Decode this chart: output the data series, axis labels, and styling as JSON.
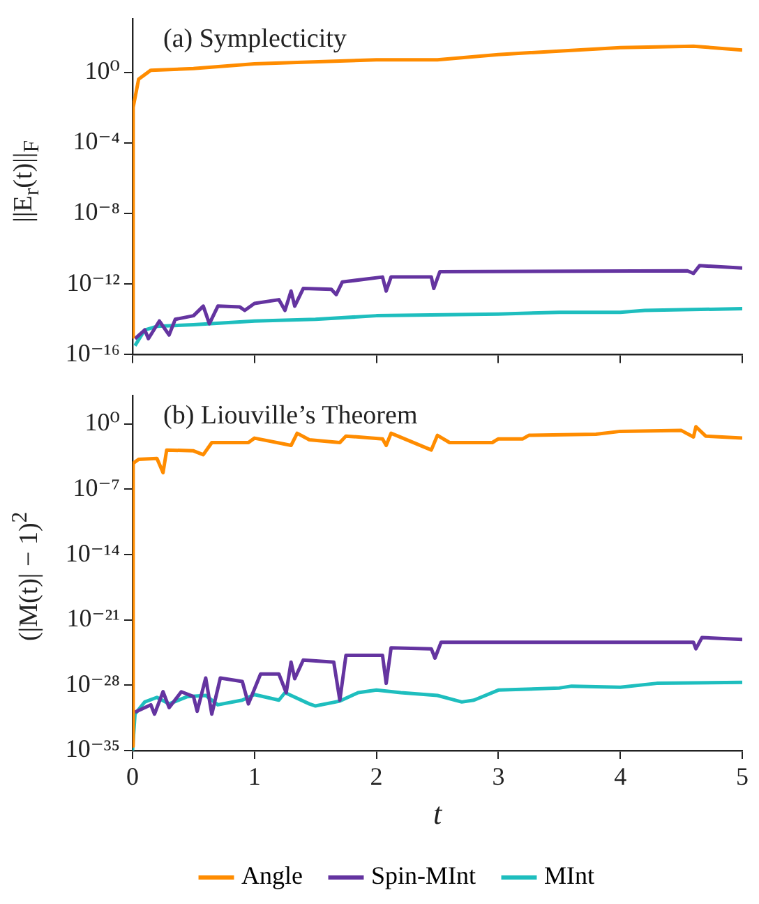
{
  "chart_data": [
    {
      "type": "line",
      "title": "(a) Symplecticity",
      "ylabel": "||E$_{r}$(t)||$_{F}$",
      "log": "y",
      "grid": false,
      "legend": false,
      "tick_labels": "y",
      "xlim": [
        0,
        5
      ],
      "xticks": [
        0,
        1,
        2,
        3,
        4,
        5
      ],
      "ylim": [
        1e-16,
        1000
      ],
      "yticks": [
        {
          "value": 1e-16,
          "label": "10⁻¹⁶"
        },
        {
          "value": 1e-12,
          "label": "10⁻¹²"
        },
        {
          "value": 1e-08,
          "label": "10⁻⁸"
        },
        {
          "value": 0.0001,
          "label": "10⁻⁴"
        },
        {
          "value": 1,
          "label": "10⁰"
        }
      ],
      "series": [
        {
          "color": "#ff8c00",
          "x": [
            0,
            0.005,
            0.05,
            0.15,
            0.5,
            1,
            2,
            2.5,
            3,
            4,
            4.6,
            5
          ],
          "values": [
            1e-15,
            0.01,
            0.4,
            1.3,
            1.6,
            3,
            5,
            5,
            10,
            25,
            30,
            18
          ]
        },
        {
          "color": "#6434a0",
          "x": [
            0.02,
            0.1,
            0.13,
            0.22,
            0.3,
            0.35,
            0.5,
            0.58,
            0.63,
            0.7,
            0.88,
            0.92,
            1.0,
            1.2,
            1.25,
            1.3,
            1.33,
            1.4,
            1.63,
            1.67,
            1.72,
            2.05,
            2.08,
            2.12,
            2.45,
            2.47,
            2.52,
            4.55,
            4.6,
            4.65,
            5
          ],
          "values": [
            8e-16,
            2.5e-15,
            8e-16,
            8e-15,
            1.3e-15,
            1e-14,
            1.6e-14,
            5.6e-14,
            5.6e-15,
            5.6e-14,
            5e-14,
            3.2e-14,
            8e-14,
            1.3e-13,
            3.2e-14,
            4e-13,
            5.6e-14,
            5.6e-13,
            5e-13,
            2.5e-13,
            1.3e-12,
            2.5e-12,
            4e-13,
            2.5e-12,
            2.5e-12,
            5.6e-13,
            5e-12,
            5.6e-12,
            4e-12,
            1.1e-11,
            8e-12
          ]
        },
        {
          "color": "#1ebebe",
          "x": [
            0.02,
            0.1,
            0.2,
            0.5,
            1,
            1.5,
            2,
            3,
            3.5,
            4,
            4.2,
            5
          ],
          "values": [
            3.2e-16,
            2.5e-15,
            4e-15,
            5e-15,
            8e-15,
            1e-14,
            1.6e-14,
            2e-14,
            2.5e-14,
            2.5e-14,
            3.2e-14,
            4e-14
          ]
        }
      ]
    },
    {
      "type": "line",
      "title": "(b) Liouville’s Theorem",
      "xlabel": "t",
      "ylabel": "(|M(t)| − 1)$^{2}$",
      "log": "y",
      "grid": false,
      "legend": "bottom",
      "xlim": [
        0,
        5
      ],
      "xticks": [
        0,
        1,
        2,
        3,
        4,
        5
      ],
      "ylim": [
        1e-35,
        1000
      ],
      "yticks": [
        {
          "value": 1e-35,
          "label": "10⁻³⁵"
        },
        {
          "value": 1e-28,
          "label": "10⁻²⁸"
        },
        {
          "value": 1e-21,
          "label": "10⁻²¹"
        },
        {
          "value": 1e-14,
          "label": "10⁻¹⁴"
        },
        {
          "value": 1e-07,
          "label": "10⁻⁷"
        },
        {
          "value": 1,
          "label": "10⁰"
        }
      ],
      "series": [
        {
          "name": "Angle",
          "color": "#ff8c00",
          "x": [
            0,
            0.005,
            0.05,
            0.2,
            0.25,
            0.28,
            0.5,
            0.58,
            0.65,
            0.95,
            1,
            1.3,
            1.35,
            1.45,
            1.7,
            1.75,
            2.05,
            2.08,
            2.12,
            2.45,
            2.5,
            2.6,
            2.95,
            3,
            3.2,
            3.25,
            3.8,
            4,
            4.5,
            4.6,
            4.62,
            4.7,
            5
          ],
          "values": [
            3e-35,
            6e-05,
            0.00016,
            0.0002,
            6e-06,
            0.0016,
            0.0013,
            0.0005,
            0.01,
            0.01,
            0.03,
            0.005,
            0.1,
            0.02,
            0.01,
            0.05,
            0.025,
            0.005,
            0.1,
            0.0016,
            0.06,
            0.01,
            0.01,
            0.025,
            0.025,
            0.06,
            0.08,
            0.16,
            0.2,
            0.04,
            0.5,
            0.05,
            0.03
          ]
        },
        {
          "name": "Spin-MInt",
          "color": "#6434a0",
          "x": [
            0.02,
            0.15,
            0.18,
            0.25,
            0.3,
            0.4,
            0.5,
            0.53,
            0.6,
            0.65,
            0.72,
            0.9,
            0.95,
            1.05,
            1.2,
            1.26,
            1.3,
            1.33,
            1.4,
            1.65,
            1.7,
            1.75,
            2.05,
            2.08,
            2.12,
            2.45,
            2.48,
            2.53,
            4.6,
            4.62,
            4.67,
            5
          ],
          "values": [
            1.3e-31,
            8e-31,
            8e-32,
            2e-29,
            4e-31,
            2e-29,
            6e-30,
            1.6e-31,
            6e-28,
            8e-32,
            6e-28,
            2.5e-28,
            1e-30,
            1.6e-27,
            1.6e-27,
            1.6e-29,
            3e-26,
            5e-28,
            5e-26,
            3e-26,
            2.5e-30,
            1.6e-25,
            1.6e-25,
            1.6e-28,
            1e-24,
            8e-25,
            8e-26,
            4e-24,
            4e-24,
            8e-25,
            1.3e-23,
            8e-24
          ]
        },
        {
          "name": "MInt",
          "color": "#1ebebe",
          "x": [
            0,
            0.02,
            0.1,
            0.2,
            0.3,
            0.45,
            0.6,
            0.7,
            0.9,
            1,
            1.2,
            1.25,
            1.45,
            1.5,
            1.7,
            1.85,
            2,
            2.2,
            2.5,
            2.7,
            2.8,
            3,
            3.5,
            3.6,
            4,
            4.3,
            5
          ],
          "values": [
            1e-35,
            8e-32,
            1.6e-30,
            5e-30,
            1e-30,
            6e-30,
            8e-30,
            8e-31,
            2.5e-30,
            1e-29,
            2.5e-30,
            1.6e-29,
            1e-30,
            6e-31,
            2e-30,
            1.6e-29,
            3e-29,
            1.6e-29,
            8e-30,
            1.6e-30,
            2.5e-30,
            3e-29,
            5e-29,
            8e-29,
            6e-29,
            1.6e-28,
            2e-28
          ]
        }
      ]
    }
  ]
}
